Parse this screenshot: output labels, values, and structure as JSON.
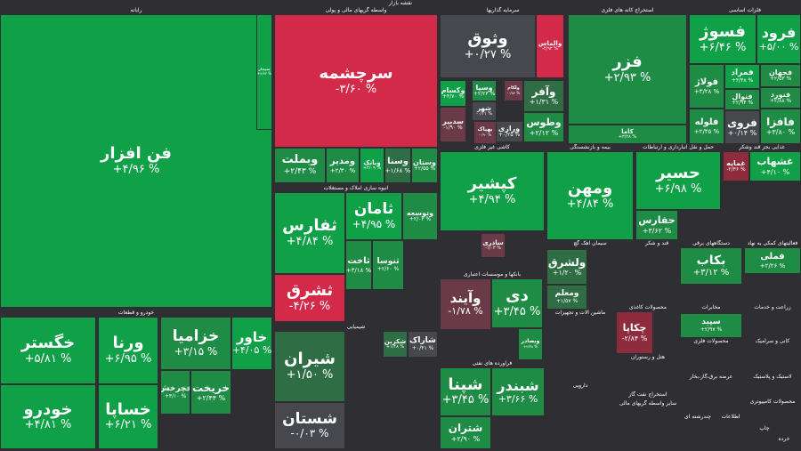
{
  "main_title": "نقشه بازار",
  "colors": {
    "up_strong": "#0fa048",
    "up_mid": "#1f8c45",
    "up_weak": "#2f6e44",
    "flat": "#47484d",
    "down_weak": "#6b3a48",
    "down_mid": "#8e2c3e",
    "down_strong": "#d42a4a"
  },
  "chart_data": {
    "type": "treemap",
    "sectors": [
      {
        "name": "رایانه"
      },
      {
        "name": "واسطه گریهای مالی و پولی"
      },
      {
        "name": "سرمایه گذاریها"
      },
      {
        "name": "استخراج کانه های فلزی"
      },
      {
        "name": "فلزات اساسی"
      },
      {
        "name": "خودرو و قطعات"
      },
      {
        "name": "انبوه سازی املاک و مستغلات"
      },
      {
        "name": "شیمیایی"
      },
      {
        "name": "بانکها و موسسات اعتباری"
      },
      {
        "name": "فراورده های نفتی"
      },
      {
        "name": "کاشی غیر فلزی"
      },
      {
        "name": "بیمه و بازنشستگی"
      },
      {
        "name": "حمل و نقل انبارداری و ارتباطات"
      },
      {
        "name": "غذایی بجز قند وشکر"
      },
      {
        "name": "قند و شکر"
      },
      {
        "name": "سیمان آهک گچ"
      },
      {
        "name": "ماشین آلات و تجهیزات"
      },
      {
        "name": "محصولات کاغذی"
      },
      {
        "name": "دستگاههای برقی"
      },
      {
        "name": "فعالیتهای کمکی به نهاد"
      },
      {
        "name": "محصولات فلزی"
      },
      {
        "name": "دارویی"
      },
      {
        "name": "هتل و رستوران"
      },
      {
        "name": "مخابرات"
      },
      {
        "name": "زراعت و خدمات"
      },
      {
        "name": "کانی و سرامیک"
      },
      {
        "name": "استخراج نفت گاز"
      },
      {
        "name": "عرضه برق،گاز،بخار"
      },
      {
        "name": "سایر واسطه گریهای مالی"
      },
      {
        "name": "چندرشته ای"
      },
      {
        "name": "اطلاعات"
      },
      {
        "name": "لاستیک و پلاستیک"
      },
      {
        "name": "محصولات کامپیوتری"
      },
      {
        "name": "چاپ"
      },
      {
        "name": "خرده"
      }
    ],
    "tiles": [
      {
        "name": "فن افزار",
        "change": "+۴/۹۶ %",
        "value": 4.96
      },
      {
        "name": "سپیدار",
        "change": "+۴/۷۲ %",
        "value": 4.72
      },
      {
        "name": "سرچشمه",
        "change": "-۳/۶۰ %",
        "value": -3.6
      },
      {
        "name": "وبملت",
        "change": "+۲/۴۳ %",
        "value": 2.43
      },
      {
        "name": "ومدیر",
        "change": "+۲/۳۰ %",
        "value": 2.3
      },
      {
        "name": "وبانک",
        "change": "+۴/۰۹ %",
        "value": 4.09
      },
      {
        "name": "وسنا",
        "change": "+۱/۶۸ %",
        "value": 1.68
      },
      {
        "name": "وسنان",
        "change": "+۲/۵۵ %",
        "value": 2.55
      },
      {
        "name": "وثوق",
        "change": "+۰/۲۷ %",
        "value": 0.27
      },
      {
        "name": "والماس",
        "change": "-۴/۹۳ %",
        "value": -4.93
      },
      {
        "name": "وسپا",
        "change": "+۲/۲۳ %",
        "value": 2.23
      },
      {
        "name": "ولکام",
        "change": "-۰/۸۴ %",
        "value": -0.84
      },
      {
        "name": "وکسام",
        "change": "+۴/۷۰ %",
        "value": 4.7
      },
      {
        "name": "شهر",
        "change": "-۰/۱۱ %",
        "value": -0.11
      },
      {
        "name": "سدبیر",
        "change": "-۱/۹۰ %",
        "value": -1.9
      },
      {
        "name": "ورازی",
        "change": "+۰/۲۵ %",
        "value": 0.25
      },
      {
        "name": "وآفر",
        "change": "+۱/۳۱ %",
        "value": 1.31
      },
      {
        "name": "وطوس",
        "change": "+۲/۱۲ %",
        "value": 2.12
      },
      {
        "name": "بهپاک",
        "change": "-۰/۹۰ %",
        "value": -0.9
      },
      {
        "name": "فزر",
        "change": "+۲/۹۳ %",
        "value": 2.93
      },
      {
        "name": "کاما",
        "change": "+۳/۲۸ %",
        "value": 3.28
      },
      {
        "name": "فسوژ",
        "change": "+۶/۴۶ %",
        "value": 6.46
      },
      {
        "name": "فرود",
        "change": "+۵/۰۰ %",
        "value": 5.0
      },
      {
        "name": "فولاژ",
        "change": "+۳/۲۸ %",
        "value": 3.28
      },
      {
        "name": "فمراد",
        "change": "+۴/۴۸ %",
        "value": 4.48
      },
      {
        "name": "فنوال",
        "change": "+۲/۹۴ %",
        "value": 2.94
      },
      {
        "name": "فلوله",
        "change": "+۲/۴۵ %",
        "value": 2.45
      },
      {
        "name": "فجهان",
        "change": "+۲/۵۳ %",
        "value": 2.53
      },
      {
        "name": "فنورد",
        "change": "+۲/۸۸ %",
        "value": 2.88
      },
      {
        "name": "فروی",
        "change": "+۰/۱۴ %",
        "value": 0.14
      },
      {
        "name": "فافزا",
        "change": "+۳/۸۰ %",
        "value": 3.8
      },
      {
        "name": "خگستر",
        "change": "+۵/۸۱ %",
        "value": 5.81
      },
      {
        "name": "ورنا",
        "change": "+۶/۹۵ %",
        "value": 6.95
      },
      {
        "name": "خزامیا",
        "change": "+۳/۱۵ %",
        "value": 3.15
      },
      {
        "name": "خاور",
        "change": "+۴/۰۵ %",
        "value": 4.05
      },
      {
        "name": "خودرو",
        "change": "+۴/۸۱ %",
        "value": 4.81
      },
      {
        "name": "خساپا",
        "change": "+۶/۲۱ %",
        "value": 6.21
      },
      {
        "name": "خریخت",
        "change": "+۲/۴۴ %",
        "value": 2.44
      },
      {
        "name": "خچرخش",
        "change": "+۳/۱۰ %",
        "value": 3.1
      },
      {
        "name": "ثفارس",
        "change": "+۴/۸۴ %",
        "value": 4.84
      },
      {
        "name": "ثامان",
        "change": "+۴/۹۵ %",
        "value": 4.95
      },
      {
        "name": "وتوسعه",
        "change": "+۲/۰۳ %",
        "value": 2.03
      },
      {
        "name": "ثشرق",
        "change": "-۴/۲۶ %",
        "value": -4.26
      },
      {
        "name": "ثاخت",
        "change": "+۳/۱۸ %",
        "value": 3.18
      },
      {
        "name": "ثنوسا",
        "change": "+۲/۶۰ %",
        "value": 2.6
      },
      {
        "name": "شیران",
        "change": "+۱/۵۰ %",
        "value": 1.5
      },
      {
        "name": "شستان",
        "change": "-۰/۰۳ %",
        "value": -0.03
      },
      {
        "name": "شکربن",
        "change": "+۱/۴۸ %",
        "value": 1.48
      },
      {
        "name": "شاراک",
        "change": "+۰/۴۱ %",
        "value": 0.41
      },
      {
        "name": "وآیند",
        "change": "-۱/۷۸ %",
        "value": -1.78
      },
      {
        "name": "دی",
        "change": "+۳/۴۵ %",
        "value": 3.45
      },
      {
        "name": "وبصادر",
        "change": "+۲/۳۸ %",
        "value": 2.38
      },
      {
        "name": "شپنا",
        "change": "+۳/۴۵ %",
        "value": 3.45
      },
      {
        "name": "شبندر",
        "change": "+۳/۶۶ %",
        "value": 3.66
      },
      {
        "name": "شتران",
        "change": "+۲/۹۰ %",
        "value": 2.9
      },
      {
        "name": "کپشیر",
        "change": "+۴/۹۴ %",
        "value": 4.94
      },
      {
        "name": "ساذری",
        "change": "-۱/۰۳ %",
        "value": -1.03
      },
      {
        "name": "ومهن",
        "change": "+۴/۸۴ %",
        "value": 4.84
      },
      {
        "name": "حسیر",
        "change": "+۶/۹۸ %",
        "value": 6.98
      },
      {
        "name": "حفارس",
        "change": "+۳/۶۲ %",
        "value": 3.62
      },
      {
        "name": "غمایه",
        "change": "-۲/۳۶ %",
        "value": -2.36
      },
      {
        "name": "غشهاب",
        "change": "+۴/۱۰ %",
        "value": 4.1
      },
      {
        "name": "چکاپا",
        "change": "-۲/۸۴ %",
        "value": -2.84
      },
      {
        "name": "بکاب",
        "change": "+۳/۱۲ %",
        "value": 3.12
      },
      {
        "name": "سپید",
        "change": "+۲/۹۷ %",
        "value": 2.97
      },
      {
        "name": "ولشرق",
        "change": "+۱/۲۰ %",
        "value": 1.2
      },
      {
        "name": "ومعلم",
        "change": "+۱/۵۷ %",
        "value": 1.57
      },
      {
        "name": "فملی",
        "change": "+۲/۲۶ %",
        "value": 2.26
      }
    ]
  }
}
